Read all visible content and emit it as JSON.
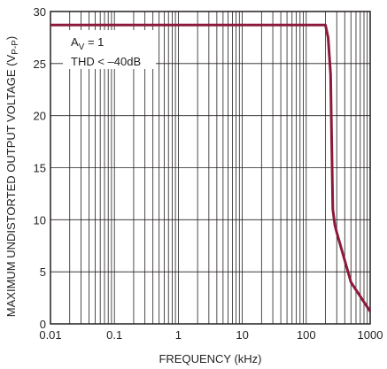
{
  "chart_data": {
    "type": "line",
    "xscale": "log",
    "xlim": [
      0.01,
      1000
    ],
    "ylim": [
      0,
      30
    ],
    "xticks": [
      0.01,
      0.1,
      1,
      10,
      100,
      1000
    ],
    "xtick_labels": [
      "0.01",
      "0.1",
      "1",
      "10",
      "100",
      "1000"
    ],
    "yticks": [
      0,
      5,
      10,
      15,
      20,
      25,
      30
    ],
    "ytick_labels": [
      "0",
      "5",
      "10",
      "15",
      "20",
      "25",
      "30"
    ],
    "xlabel": "FREQUENCY (kHz)",
    "ylabel": "MAXIMUM UNDISTORTED OUTPUT VOLTAGE (V",
    "ylabel_subscript": "P-P",
    "ylabel_suffix": ")",
    "grid": true,
    "annotations": {
      "line1_main": "A",
      "line1_sub": "V",
      "line1_rest": " = 1",
      "line2": "THD < –40dB"
    },
    "series": [
      {
        "color": "#8b1a3a",
        "x": [
          0.01,
          100,
          200,
          220,
          240,
          260,
          280,
          300,
          500,
          1000
        ],
        "y": [
          28.7,
          28.7,
          28.7,
          27.5,
          24,
          11,
          9.5,
          8.8,
          4,
          1.2
        ]
      }
    ]
  }
}
